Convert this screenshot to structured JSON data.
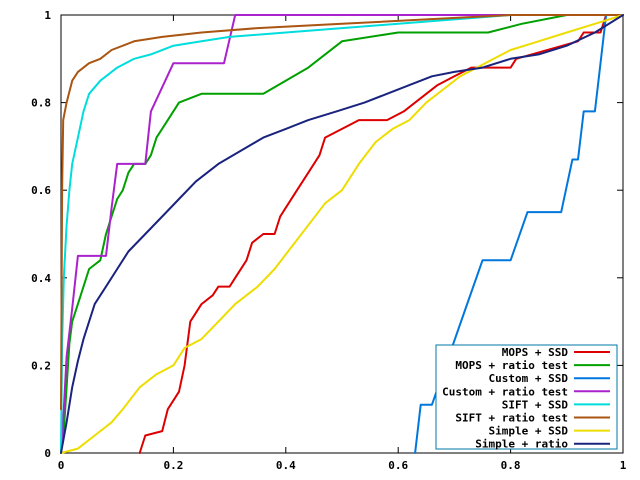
{
  "chart_data": {
    "type": "line",
    "title": "",
    "xlabel": "",
    "ylabel": "",
    "xlim": [
      0,
      1
    ],
    "ylim": [
      0,
      1
    ],
    "x_ticks": [
      "0",
      "0.2",
      "0.4",
      "0.6",
      "0.8",
      "1"
    ],
    "y_ticks": [
      "0",
      "0.2",
      "0.4",
      "0.6",
      "0.8",
      "1"
    ],
    "grid": false,
    "legend_position": "bottom-right",
    "series": [
      {
        "name": "MOPS + SSD",
        "color": "#dd0000",
        "points": [
          [
            0.14,
            0
          ],
          [
            0.15,
            0.04
          ],
          [
            0.18,
            0.05
          ],
          [
            0.19,
            0.1
          ],
          [
            0.21,
            0.14
          ],
          [
            0.22,
            0.2
          ],
          [
            0.23,
            0.3
          ],
          [
            0.25,
            0.34
          ],
          [
            0.27,
            0.36
          ],
          [
            0.28,
            0.38
          ],
          [
            0.3,
            0.38
          ],
          [
            0.31,
            0.4
          ],
          [
            0.33,
            0.44
          ],
          [
            0.34,
            0.48
          ],
          [
            0.36,
            0.5
          ],
          [
            0.38,
            0.5
          ],
          [
            0.39,
            0.54
          ],
          [
            0.4,
            0.56
          ],
          [
            0.42,
            0.6
          ],
          [
            0.44,
            0.64
          ],
          [
            0.46,
            0.68
          ],
          [
            0.47,
            0.72
          ],
          [
            0.5,
            0.74
          ],
          [
            0.53,
            0.76
          ],
          [
            0.58,
            0.76
          ],
          [
            0.61,
            0.78
          ],
          [
            0.63,
            0.8
          ],
          [
            0.65,
            0.82
          ],
          [
            0.67,
            0.84
          ],
          [
            0.7,
            0.86
          ],
          [
            0.73,
            0.88
          ],
          [
            0.8,
            0.88
          ],
          [
            0.81,
            0.9
          ],
          [
            0.92,
            0.94
          ],
          [
            0.93,
            0.96
          ],
          [
            0.96,
            0.96
          ],
          [
            0.97,
            1
          ],
          [
            1,
            1
          ]
        ]
      },
      {
        "name": "MOPS + ratio test",
        "color": "#00a000",
        "points": [
          [
            0,
            0
          ],
          [
            0.005,
            0.05
          ],
          [
            0.01,
            0.15
          ],
          [
            0.015,
            0.25
          ],
          [
            0.02,
            0.3
          ],
          [
            0.03,
            0.34
          ],
          [
            0.04,
            0.38
          ],
          [
            0.05,
            0.42
          ],
          [
            0.07,
            0.44
          ],
          [
            0.08,
            0.5
          ],
          [
            0.09,
            0.54
          ],
          [
            0.1,
            0.58
          ],
          [
            0.11,
            0.6
          ],
          [
            0.12,
            0.64
          ],
          [
            0.13,
            0.66
          ],
          [
            0.15,
            0.66
          ],
          [
            0.16,
            0.68
          ],
          [
            0.17,
            0.72
          ],
          [
            0.19,
            0.76
          ],
          [
            0.21,
            0.8
          ],
          [
            0.25,
            0.82
          ],
          [
            0.36,
            0.82
          ],
          [
            0.44,
            0.88
          ],
          [
            0.5,
            0.94
          ],
          [
            0.6,
            0.96
          ],
          [
            0.76,
            0.96
          ],
          [
            0.82,
            0.98
          ],
          [
            0.9,
            1
          ],
          [
            1,
            1
          ]
        ]
      },
      {
        "name": "Custom + SSD",
        "color": "#0077dd",
        "points": [
          [
            0.63,
            0
          ],
          [
            0.64,
            0.11
          ],
          [
            0.66,
            0.11
          ],
          [
            0.69,
            0.22
          ],
          [
            0.72,
            0.33
          ],
          [
            0.75,
            0.44
          ],
          [
            0.8,
            0.44
          ],
          [
            0.83,
            0.55
          ],
          [
            0.89,
            0.55
          ],
          [
            0.91,
            0.67
          ],
          [
            0.92,
            0.67
          ],
          [
            0.93,
            0.78
          ],
          [
            0.95,
            0.78
          ],
          [
            0.96,
            0.89
          ],
          [
            0.97,
            1
          ],
          [
            1,
            1
          ]
        ]
      },
      {
        "name": "Custom + ratio test",
        "color": "#aa22cc",
        "points": [
          [
            0,
            0
          ],
          [
            0.005,
            0.1
          ],
          [
            0.01,
            0.22
          ],
          [
            0.02,
            0.33
          ],
          [
            0.03,
            0.45
          ],
          [
            0.08,
            0.45
          ],
          [
            0.09,
            0.56
          ],
          [
            0.1,
            0.66
          ],
          [
            0.15,
            0.66
          ],
          [
            0.16,
            0.78
          ],
          [
            0.2,
            0.89
          ],
          [
            0.29,
            0.89
          ],
          [
            0.31,
            1
          ],
          [
            1,
            1
          ]
        ]
      },
      {
        "name": "SIFT + SSD",
        "color": "#00dddd",
        "points": [
          [
            0,
            0
          ],
          [
            0.002,
            0.25
          ],
          [
            0.005,
            0.4
          ],
          [
            0.01,
            0.52
          ],
          [
            0.015,
            0.6
          ],
          [
            0.02,
            0.66
          ],
          [
            0.03,
            0.72
          ],
          [
            0.04,
            0.78
          ],
          [
            0.05,
            0.82
          ],
          [
            0.07,
            0.85
          ],
          [
            0.1,
            0.88
          ],
          [
            0.13,
            0.9
          ],
          [
            0.16,
            0.91
          ],
          [
            0.2,
            0.93
          ],
          [
            0.25,
            0.94
          ],
          [
            0.3,
            0.95
          ],
          [
            0.4,
            0.96
          ],
          [
            0.5,
            0.97
          ],
          [
            0.6,
            0.98
          ],
          [
            0.7,
            0.99
          ],
          [
            0.8,
            1
          ],
          [
            1,
            1
          ]
        ]
      },
      {
        "name": "SIFT + ratio test",
        "color": "#aa5511",
        "points": [
          [
            0,
            0.1
          ],
          [
            0.002,
            0.6
          ],
          [
            0.004,
            0.76
          ],
          [
            0.01,
            0.8
          ],
          [
            0.02,
            0.85
          ],
          [
            0.03,
            0.87
          ],
          [
            0.05,
            0.89
          ],
          [
            0.07,
            0.9
          ],
          [
            0.09,
            0.92
          ],
          [
            0.13,
            0.94
          ],
          [
            0.18,
            0.95
          ],
          [
            0.25,
            0.96
          ],
          [
            0.35,
            0.97
          ],
          [
            0.5,
            0.98
          ],
          [
            0.65,
            0.99
          ],
          [
            0.8,
            1
          ],
          [
            1,
            1
          ]
        ]
      },
      {
        "name": "Simple + SSD",
        "color": "#eedd00",
        "points": [
          [
            0,
            0
          ],
          [
            0.03,
            0.01
          ],
          [
            0.06,
            0.04
          ],
          [
            0.09,
            0.07
          ],
          [
            0.11,
            0.1
          ],
          [
            0.14,
            0.15
          ],
          [
            0.17,
            0.18
          ],
          [
            0.2,
            0.2
          ],
          [
            0.22,
            0.24
          ],
          [
            0.25,
            0.26
          ],
          [
            0.28,
            0.3
          ],
          [
            0.31,
            0.34
          ],
          [
            0.35,
            0.38
          ],
          [
            0.38,
            0.42
          ],
          [
            0.41,
            0.47
          ],
          [
            0.44,
            0.52
          ],
          [
            0.47,
            0.57
          ],
          [
            0.5,
            0.6
          ],
          [
            0.53,
            0.66
          ],
          [
            0.56,
            0.71
          ],
          [
            0.59,
            0.74
          ],
          [
            0.62,
            0.76
          ],
          [
            0.65,
            0.8
          ],
          [
            0.68,
            0.83
          ],
          [
            0.71,
            0.86
          ],
          [
            0.74,
            0.88
          ],
          [
            0.77,
            0.9
          ],
          [
            0.8,
            0.92
          ],
          [
            0.85,
            0.94
          ],
          [
            0.9,
            0.96
          ],
          [
            0.95,
            0.98
          ],
          [
            1,
            1
          ]
        ]
      },
      {
        "name": "Simple + ratio",
        "color": "#1a237e",
        "points": [
          [
            0,
            0
          ],
          [
            0.01,
            0.07
          ],
          [
            0.02,
            0.15
          ],
          [
            0.03,
            0.21
          ],
          [
            0.04,
            0.26
          ],
          [
            0.05,
            0.3
          ],
          [
            0.06,
            0.34
          ],
          [
            0.08,
            0.38
          ],
          [
            0.1,
            0.42
          ],
          [
            0.12,
            0.46
          ],
          [
            0.15,
            0.5
          ],
          [
            0.18,
            0.54
          ],
          [
            0.21,
            0.58
          ],
          [
            0.24,
            0.62
          ],
          [
            0.28,
            0.66
          ],
          [
            0.32,
            0.69
          ],
          [
            0.36,
            0.72
          ],
          [
            0.4,
            0.74
          ],
          [
            0.44,
            0.76
          ],
          [
            0.49,
            0.78
          ],
          [
            0.54,
            0.8
          ],
          [
            0.58,
            0.82
          ],
          [
            0.62,
            0.84
          ],
          [
            0.66,
            0.86
          ],
          [
            0.7,
            0.87
          ],
          [
            0.75,
            0.88
          ],
          [
            0.8,
            0.9
          ],
          [
            0.85,
            0.91
          ],
          [
            0.9,
            0.93
          ],
          [
            0.95,
            0.96
          ],
          [
            1,
            1
          ]
        ]
      }
    ]
  }
}
